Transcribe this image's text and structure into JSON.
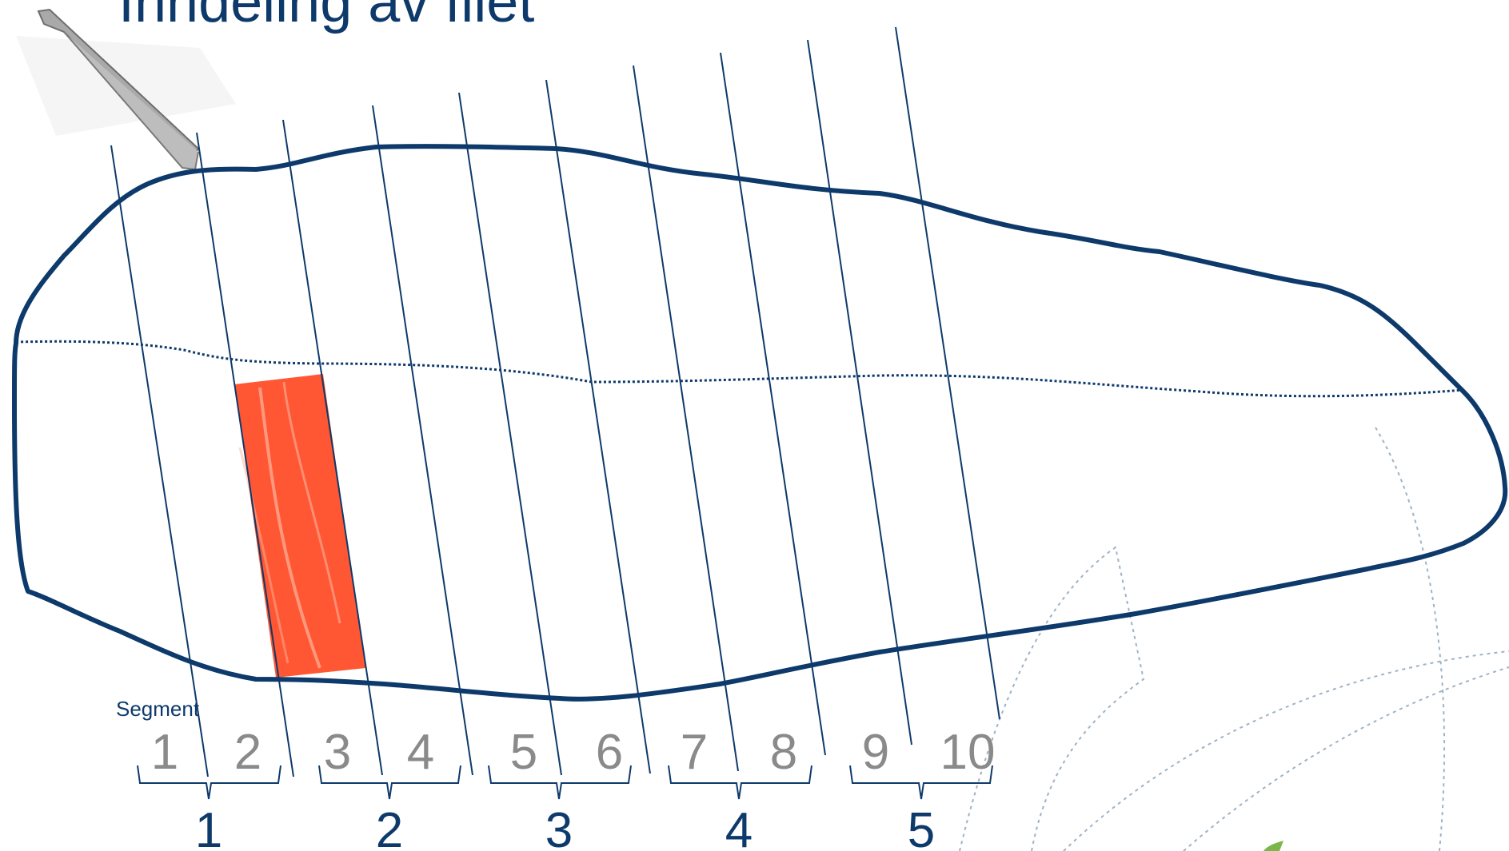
{
  "title": "Inndeling av filet",
  "segment_label": "Segment",
  "segments": [
    "1",
    "2",
    "3",
    "4",
    "5",
    "6",
    "7",
    "8",
    "9",
    "10"
  ],
  "groups": [
    "1",
    "2",
    "3",
    "4",
    "5"
  ],
  "colors": {
    "outline": "#0d3a6b",
    "sample": "#ff5733",
    "segment_numbers": "#8a8a8a",
    "group_numbers": "#0d3a6b",
    "background_decoration": "#9fb3c5"
  },
  "icons": {
    "tool": "tweezers-icon"
  }
}
